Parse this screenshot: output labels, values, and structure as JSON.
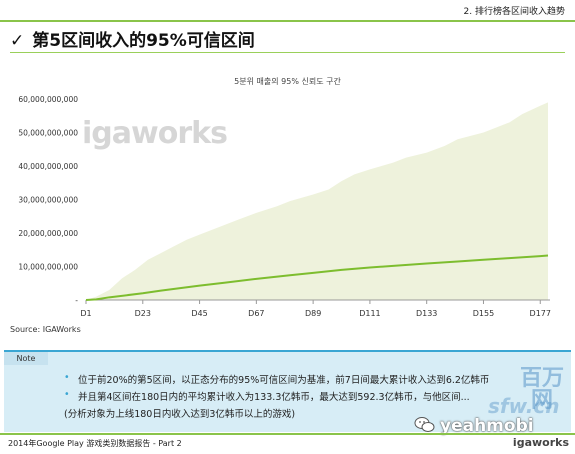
{
  "header": {
    "section": "2. 排行榜各区间收入趋势",
    "check_icon": "check-icon",
    "title": "第5区间收入的95%可信区间"
  },
  "chart_data": {
    "type": "area",
    "title": "5분위 매출의 95% 신뢰도 구간",
    "ylim": [
      0,
      60000000000
    ],
    "yticks": [
      "60,000,000,000",
      "50,000,000,000",
      "40,000,000,000",
      "30,000,000,000",
      "20,000,000,000",
      "10,000,000,000",
      "-"
    ],
    "ytick_values": [
      60000000000,
      50000000000,
      40000000000,
      30000000000,
      20000000000,
      10000000000,
      0
    ],
    "xticks": [
      "D1",
      "D23",
      "D45",
      "D67",
      "D89",
      "D111",
      "D133",
      "D155",
      "D177"
    ],
    "xtick_values": [
      1,
      23,
      45,
      67,
      89,
      111,
      133,
      155,
      177
    ],
    "xlim": [
      1,
      180
    ],
    "watermark": "igaworks",
    "band_upper": {
      "x": [
        1,
        5,
        10,
        15,
        20,
        25,
        30,
        35,
        40,
        45,
        50,
        55,
        60,
        67,
        75,
        80,
        89,
        95,
        100,
        105,
        111,
        120,
        125,
        133,
        140,
        145,
        155,
        165,
        170,
        177,
        180
      ],
      "y": [
        0,
        1000000000,
        3000000000,
        6500000000,
        9000000000,
        12000000000,
        14000000000,
        16000000000,
        18000000000,
        19500000000,
        21000000000,
        22500000000,
        24000000000,
        26000000000,
        28000000000,
        29500000000,
        31500000000,
        33000000000,
        35500000000,
        37500000000,
        39000000000,
        41000000000,
        42500000000,
        44000000000,
        46000000000,
        48000000000,
        50000000000,
        53000000000,
        55500000000,
        58000000000,
        59000000000
      ]
    },
    "band_lower": {
      "x": [
        1,
        180
      ],
      "y": [
        0,
        0
      ]
    },
    "series": [
      {
        "x": [
          1,
          5,
          10,
          23,
          30,
          45,
          55,
          67,
          80,
          89,
          100,
          111,
          120,
          133,
          145,
          155,
          165,
          177,
          180
        ],
        "y": [
          0,
          200000000,
          800000000,
          2000000000,
          2800000000,
          4300000000,
          5200000000,
          6300000000,
          7400000000,
          8100000000,
          9000000000,
          9700000000,
          10200000000,
          10900000000,
          11500000000,
          12000000000,
          12500000000,
          13100000000,
          13300000000
        ]
      }
    ],
    "colors": {
      "band": "#eef2dc",
      "line": "#7dbd2e",
      "axis": "#999999"
    }
  },
  "source": "Source: IGAWorks",
  "note": {
    "label": "Note",
    "lines": [
      "位于前20%的第5区间，以正态分布的95%可信区间为基准，前7日间最大累计收入达到6.2亿韩币",
      "并且第4区间在180日内的平均累计收入为133.3亿韩币，最大达到592.3亿韩币，与他区间...",
      "(分析对象为上线180日内收入达到3亿韩币以上的游戏)"
    ]
  },
  "watermarks": {
    "site": "百万网",
    "site_sub": "sfw.cn",
    "brand": "yeahmobi",
    "wechat_icon": "wechat-icon"
  },
  "footer": {
    "text": "2014年Google Play 游戏类别数据报告 - Part 2",
    "logo": "igaworks"
  }
}
